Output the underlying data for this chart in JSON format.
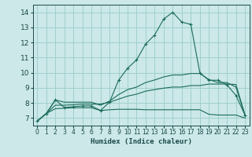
{
  "background_color": "#cce8e8",
  "grid_color": "#99cccc",
  "line_color": "#1a6b5a",
  "xlabel": "Humidex (Indice chaleur)",
  "ylim": [
    6.5,
    14.5
  ],
  "xlim": [
    -0.5,
    23.5
  ],
  "yticks": [
    7,
    8,
    9,
    10,
    11,
    12,
    13,
    14
  ],
  "xticks": [
    0,
    1,
    2,
    3,
    4,
    5,
    6,
    7,
    8,
    9,
    10,
    11,
    12,
    13,
    14,
    15,
    16,
    17,
    18,
    19,
    20,
    21,
    22,
    23
  ],
  "series1_marked": {
    "x": [
      0,
      1,
      2,
      3,
      4,
      5,
      6,
      7,
      8,
      9,
      10,
      11,
      12,
      13,
      14,
      15,
      16,
      17,
      18,
      19,
      20,
      21,
      22,
      23
    ],
    "y": [
      6.8,
      7.3,
      8.2,
      7.7,
      7.75,
      7.8,
      7.8,
      7.5,
      8.05,
      9.5,
      10.3,
      10.85,
      11.9,
      12.5,
      13.55,
      14.0,
      13.35,
      13.2,
      10.0,
      9.5,
      9.5,
      9.2,
      8.5,
      7.2
    ]
  },
  "series2_flat": {
    "x": [
      0,
      1,
      2,
      3,
      4,
      5,
      6,
      7,
      8,
      9,
      10,
      11,
      12,
      13,
      14,
      15,
      16,
      17,
      18,
      19,
      20,
      21,
      22,
      23
    ],
    "y": [
      6.8,
      7.3,
      7.62,
      7.65,
      7.68,
      7.68,
      7.68,
      7.5,
      7.55,
      7.58,
      7.58,
      7.58,
      7.55,
      7.55,
      7.55,
      7.55,
      7.55,
      7.55,
      7.55,
      7.25,
      7.2,
      7.2,
      7.2,
      7.0
    ]
  },
  "series3_mid": {
    "x": [
      0,
      1,
      2,
      3,
      4,
      5,
      6,
      7,
      8,
      9,
      10,
      11,
      12,
      13,
      14,
      15,
      16,
      17,
      18,
      19,
      20,
      21,
      22,
      23
    ],
    "y": [
      6.8,
      7.3,
      7.85,
      7.85,
      7.88,
      7.92,
      7.92,
      7.92,
      8.05,
      8.25,
      8.45,
      8.58,
      8.78,
      8.88,
      8.98,
      9.05,
      9.05,
      9.15,
      9.15,
      9.25,
      9.25,
      9.25,
      9.22,
      7.2
    ]
  },
  "series4_upper": {
    "x": [
      0,
      1,
      2,
      3,
      4,
      5,
      6,
      7,
      8,
      9,
      10,
      11,
      12,
      13,
      14,
      15,
      16,
      17,
      18,
      19,
      20,
      21,
      22,
      23
    ],
    "y": [
      6.8,
      7.3,
      8.2,
      8.05,
      8.05,
      8.05,
      8.05,
      7.85,
      8.12,
      8.55,
      8.88,
      9.05,
      9.35,
      9.52,
      9.72,
      9.85,
      9.85,
      9.95,
      9.95,
      9.55,
      9.35,
      9.35,
      9.05,
      7.2
    ]
  }
}
